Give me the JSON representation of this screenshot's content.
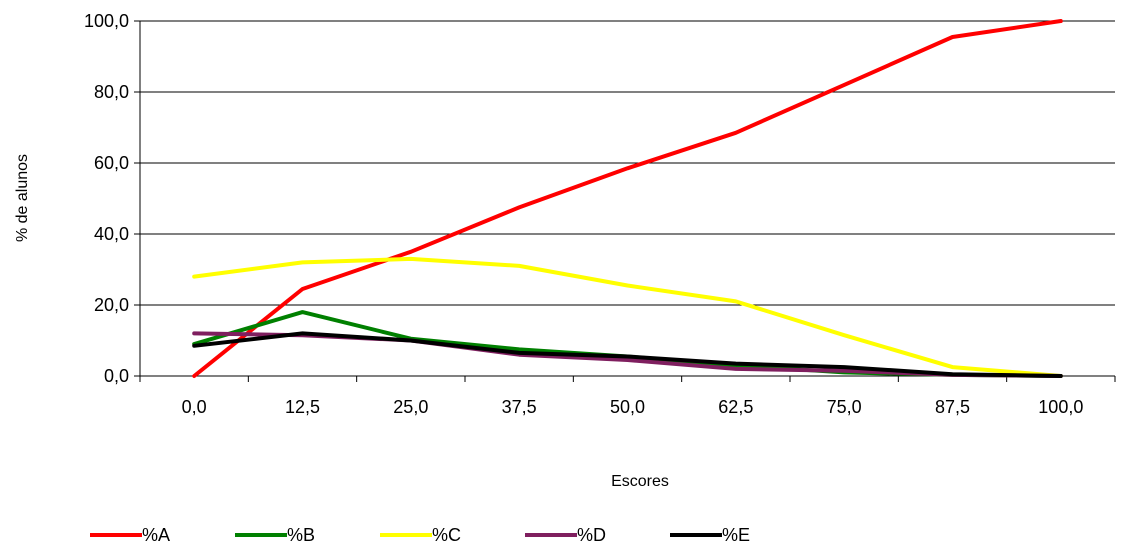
{
  "chart_data": {
    "type": "line",
    "title": "",
    "xlabel": "Escores",
    "ylabel": "% de alunos",
    "categories": [
      "0,0",
      "12,5",
      "25,0",
      "37,5",
      "50,0",
      "62,5",
      "75,0",
      "87,5",
      "100,0"
    ],
    "ylim": [
      0,
      100
    ],
    "yticks": [
      "0,0",
      "20,0",
      "40,0",
      "60,0",
      "80,0",
      "100,0"
    ],
    "grid": "horizontal",
    "legend_position": "bottom",
    "series": [
      {
        "name": "%A",
        "color": "#ff0000",
        "values": [
          0.0,
          24.5,
          35.0,
          47.5,
          58.5,
          68.5,
          82.0,
          95.5,
          100.0
        ]
      },
      {
        "name": "%B",
        "color": "#008000",
        "values": [
          9.0,
          18.0,
          10.5,
          7.5,
          5.5,
          3.0,
          1.0,
          0.3,
          0.0
        ]
      },
      {
        "name": "%C",
        "color": "#ffff00",
        "values": [
          28.0,
          32.0,
          33.0,
          31.0,
          25.5,
          21.0,
          11.5,
          2.5,
          0.0
        ]
      },
      {
        "name": "%D",
        "color": "#7f1f5f",
        "values": [
          12.0,
          11.5,
          10.0,
          6.0,
          4.5,
          2.0,
          1.5,
          0.3,
          0.0
        ]
      },
      {
        "name": "%E",
        "color": "#000000",
        "values": [
          8.5,
          12.0,
          10.0,
          6.5,
          5.5,
          3.5,
          2.5,
          0.5,
          0.0
        ]
      }
    ]
  }
}
